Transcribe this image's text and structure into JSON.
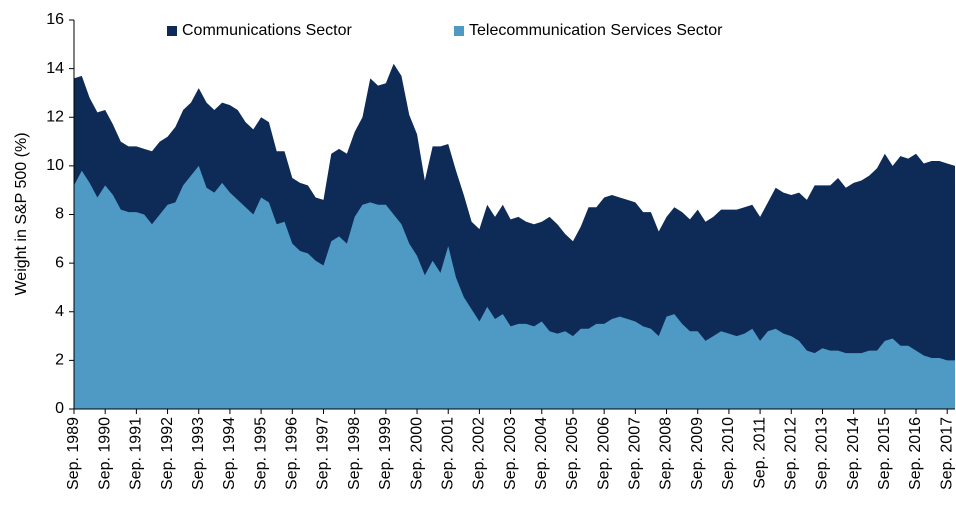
{
  "chart_data": {
    "type": "area",
    "ylabel": "Weight in S&P 500 (%)",
    "legend": "top",
    "x": [
      1989.75,
      1990,
      1990.25,
      1990.5,
      1990.75,
      1991,
      1991.25,
      1991.5,
      1991.75,
      1992,
      1992.25,
      1992.5,
      1992.75,
      1993,
      1993.25,
      1993.5,
      1993.75,
      1994,
      1994.25,
      1994.5,
      1994.75,
      1995,
      1995.25,
      1995.5,
      1995.75,
      1996,
      1996.25,
      1996.5,
      1996.75,
      1997,
      1997.25,
      1997.5,
      1997.75,
      1998,
      1998.25,
      1998.5,
      1998.75,
      1999,
      1999.25,
      1999.5,
      1999.75,
      2000,
      2000.25,
      2000.5,
      2000.75,
      2001,
      2001.25,
      2001.5,
      2001.75,
      2002,
      2002.25,
      2002.5,
      2002.75,
      2003,
      2003.25,
      2003.5,
      2003.75,
      2004,
      2004.25,
      2004.5,
      2004.75,
      2005,
      2005.25,
      2005.5,
      2005.75,
      2006,
      2006.25,
      2006.5,
      2006.75,
      2007,
      2007.25,
      2007.5,
      2007.75,
      2008,
      2008.25,
      2008.5,
      2008.75,
      2009,
      2009.25,
      2009.5,
      2009.75,
      2010,
      2010.25,
      2010.5,
      2010.75,
      2011,
      2011.25,
      2011.5,
      2011.75,
      2012,
      2012.25,
      2012.5,
      2012.75,
      2013,
      2013.25,
      2013.5,
      2013.75,
      2014,
      2014.25,
      2014.5,
      2014.75,
      2015,
      2015.25,
      2015.5,
      2015.75,
      2016,
      2016.25,
      2016.5,
      2016.75,
      2017,
      2017.25,
      2017.5,
      2017.75,
      2018
    ],
    "series": [
      {
        "name": "Communications Sector",
        "color": "#0e2b58",
        "values": [
          13.6,
          13.7,
          12.8,
          12.2,
          12.3,
          11.7,
          11.0,
          10.8,
          10.8,
          10.7,
          10.6,
          11.0,
          11.2,
          11.6,
          12.3,
          12.6,
          13.2,
          12.6,
          12.3,
          12.6,
          12.5,
          12.3,
          11.8,
          11.5,
          12.0,
          11.8,
          10.6,
          10.6,
          9.5,
          9.3,
          9.2,
          8.7,
          8.6,
          10.5,
          10.7,
          10.5,
          11.4,
          12.0,
          13.6,
          13.3,
          13.4,
          14.2,
          13.7,
          12.1,
          11.3,
          9.4,
          10.8,
          10.8,
          10.9,
          9.8,
          8.8,
          7.7,
          7.4,
          8.4,
          7.9,
          8.4,
          7.8,
          7.9,
          7.7,
          7.6,
          7.7,
          7.9,
          7.6,
          7.2,
          6.9,
          7.5,
          8.3,
          8.3,
          8.7,
          8.8,
          8.7,
          8.6,
          8.5,
          8.1,
          8.1,
          7.3,
          7.9,
          8.3,
          8.1,
          7.8,
          8.2,
          7.7,
          7.9,
          8.2,
          8.2,
          8.2,
          8.3,
          8.4,
          7.9,
          8.5,
          9.1,
          8.9,
          8.8,
          8.9,
          8.6,
          9.2,
          9.2,
          9.2,
          9.5,
          9.1,
          9.3,
          9.4,
          9.6,
          9.9,
          10.5,
          10.0,
          10.4,
          10.3,
          10.5,
          10.1,
          10.2,
          10.2,
          10.1,
          10.0
        ]
      },
      {
        "name": "Telecommunication Services Sector",
        "color": "#4e9ac5",
        "values": [
          9.2,
          9.8,
          9.3,
          8.7,
          9.2,
          8.8,
          8.2,
          8.1,
          8.1,
          8.0,
          7.6,
          8.0,
          8.4,
          8.5,
          9.2,
          9.6,
          10.0,
          9.1,
          8.9,
          9.3,
          8.9,
          8.6,
          8.3,
          8.0,
          8.7,
          8.5,
          7.6,
          7.7,
          6.8,
          6.5,
          6.4,
          6.1,
          5.9,
          6.9,
          7.1,
          6.8,
          7.9,
          8.4,
          8.5,
          8.4,
          8.4,
          8.0,
          7.6,
          6.8,
          6.3,
          5.5,
          6.1,
          5.6,
          6.7,
          5.4,
          4.6,
          4.1,
          3.6,
          4.2,
          3.7,
          3.9,
          3.4,
          3.5,
          3.5,
          3.4,
          3.6,
          3.2,
          3.1,
          3.2,
          3.0,
          3.3,
          3.3,
          3.5,
          3.5,
          3.7,
          3.8,
          3.7,
          3.6,
          3.4,
          3.3,
          3.0,
          3.8,
          3.9,
          3.5,
          3.2,
          3.2,
          2.8,
          3.0,
          3.2,
          3.1,
          3.0,
          3.1,
          3.3,
          2.8,
          3.2,
          3.3,
          3.1,
          3.0,
          2.8,
          2.4,
          2.3,
          2.5,
          2.4,
          2.4,
          2.3,
          2.3,
          2.3,
          2.4,
          2.4,
          2.8,
          2.9,
          2.6,
          2.6,
          2.4,
          2.2,
          2.1,
          2.1,
          2.0,
          2.0
        ]
      }
    ],
    "xlim": [
      1989.75,
      2018
    ],
    "xticks": [
      {
        "value": 1989.75,
        "label": "Sep. 1989"
      },
      {
        "value": 1990.75,
        "label": "Sep. 1990"
      },
      {
        "value": 1991.75,
        "label": "Sep. 1991"
      },
      {
        "value": 1992.75,
        "label": "Sep. 1992"
      },
      {
        "value": 1993.75,
        "label": "Sep. 1993"
      },
      {
        "value": 1994.75,
        "label": "Sep. 1994"
      },
      {
        "value": 1995.75,
        "label": "Sep. 1995"
      },
      {
        "value": 1996.75,
        "label": "Sep. 1996"
      },
      {
        "value": 1997.75,
        "label": "Sep. 1997"
      },
      {
        "value": 1998.75,
        "label": "Sep. 1998"
      },
      {
        "value": 1999.75,
        "label": "Sep. 1999"
      },
      {
        "value": 2000.75,
        "label": "Sep. 2000"
      },
      {
        "value": 2001.75,
        "label": "Sep. 2001"
      },
      {
        "value": 2002.75,
        "label": "Sep. 2002"
      },
      {
        "value": 2003.75,
        "label": "Sep. 2003"
      },
      {
        "value": 2004.75,
        "label": "Sep. 2004"
      },
      {
        "value": 2005.75,
        "label": "Sep. 2005"
      },
      {
        "value": 2006.75,
        "label": "Sep. 2006"
      },
      {
        "value": 2007.75,
        "label": "Sep. 2007"
      },
      {
        "value": 2008.75,
        "label": "Sep. 2008"
      },
      {
        "value": 2009.75,
        "label": "Sep. 2009"
      },
      {
        "value": 2010.75,
        "label": "Sep. 2010"
      },
      {
        "value": 2011.75,
        "label": "Sep. 2011"
      },
      {
        "value": 2012.75,
        "label": "Sep. 2012"
      },
      {
        "value": 2013.75,
        "label": "Sep. 2013"
      },
      {
        "value": 2014.75,
        "label": "Sep. 2014"
      },
      {
        "value": 2015.75,
        "label": "Sep. 2015"
      },
      {
        "value": 2016.75,
        "label": "Sep. 2016"
      },
      {
        "value": 2017.75,
        "label": "Sep. 2017"
      }
    ],
    "ylim": [
      0,
      16
    ],
    "yticks": [
      0,
      2,
      4,
      6,
      8,
      10,
      12,
      14,
      16
    ],
    "grid": false
  }
}
